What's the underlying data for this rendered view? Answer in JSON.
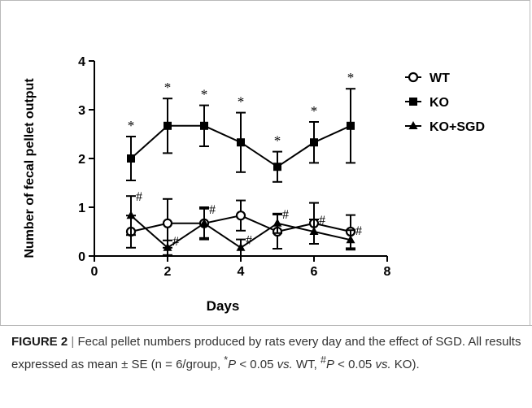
{
  "chart_data": {
    "type": "line",
    "xlabel": "Days",
    "ylabel": "Number of fecal pellet output",
    "xlim": [
      0,
      8
    ],
    "ylim": [
      0,
      4
    ],
    "xticks": [
      "0",
      "2",
      "4",
      "6",
      "8"
    ],
    "yticks": [
      "0",
      "1",
      "2",
      "3",
      "4"
    ],
    "legend_position": "right",
    "x": [
      1,
      2,
      3,
      4,
      5,
      6,
      7
    ],
    "series": [
      {
        "name": "WT",
        "marker": "open-circle",
        "values": [
          0.5,
          0.67,
          0.67,
          0.83,
          0.5,
          0.67,
          0.5
        ],
        "errors": [
          0.33,
          0.5,
          0.33,
          0.31,
          0.35,
          0.42,
          0.34
        ]
      },
      {
        "name": "KO",
        "marker": "filled-square",
        "values": [
          2.0,
          2.67,
          2.67,
          2.33,
          1.83,
          2.33,
          2.67
        ],
        "errors": [
          0.45,
          0.56,
          0.42,
          0.61,
          0.31,
          0.42,
          0.76
        ],
        "annotations": [
          "*",
          "*",
          "*",
          "*",
          "*",
          "*",
          "*"
        ]
      },
      {
        "name": "KO+SGD",
        "marker": "filled-triangle",
        "values": [
          0.83,
          0.17,
          0.67,
          0.17,
          0.67,
          0.5,
          0.33
        ],
        "errors": [
          0.4,
          0.15,
          0.3,
          0.17,
          0.2,
          0.25,
          0.2
        ],
        "annotations": [
          "#",
          "#",
          "#",
          "#",
          "#",
          "#",
          "#"
        ]
      }
    ],
    "colors": {
      "line": "#000000"
    }
  },
  "caption": {
    "label": "FIGURE 2",
    "separator": "|",
    "text1": "Fecal pellet numbers produced by rats every day and the effect of SGD. All results expressed as mean ± SE (n = 6/group, ",
    "star": "*",
    "p1": "P",
    "text2": " < 0.05 ",
    "vs1": "vs.",
    "text3": " WT, ",
    "hash": "#",
    "p2": "P",
    "text4": " < 0.05 ",
    "vs2": "vs.",
    "text5": " KO)."
  }
}
